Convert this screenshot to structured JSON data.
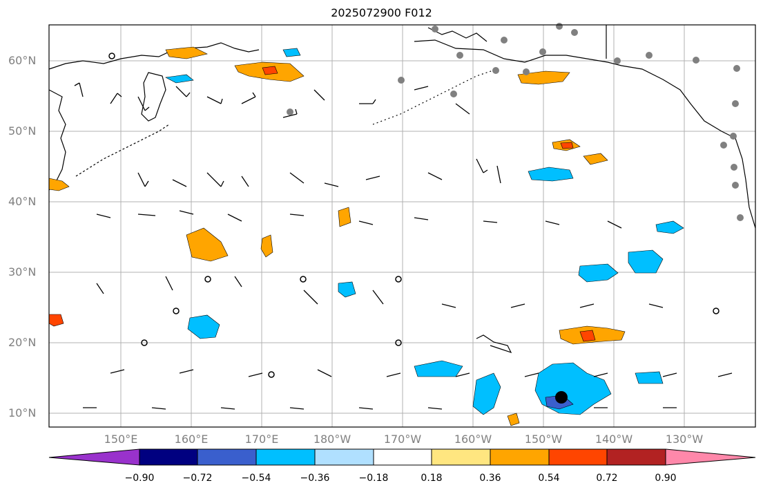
{
  "title": "2025072900 F012",
  "map": {
    "lat_labels": [
      "60°N",
      "50°N",
      "40°N",
      "30°N",
      "20°N",
      "10°N"
    ],
    "lon_labels": [
      "150°E",
      "160°E",
      "170°E",
      "180°W",
      "170°W",
      "160°W",
      "150°W",
      "140°W",
      "130°W"
    ]
  },
  "colorbar": {
    "labels": [
      "−0.90",
      "−0.72",
      "−0.54",
      "−0.36",
      "−0.18",
      "0.18",
      "0.36",
      "0.54",
      "0.72",
      "0.90"
    ],
    "colors": [
      "#9932cc",
      "#000080",
      "#3a5fcd",
      "#00bfff",
      "#b0e0ff",
      "#ffffff",
      "#ffe680",
      "#ffa500",
      "#ff4500",
      "#b22222",
      "#ff88aa"
    ]
  },
  "colors": {
    "negative_fill": "#00bfff",
    "positive_fill": "#ffa500",
    "station_marker": "#808080"
  }
}
